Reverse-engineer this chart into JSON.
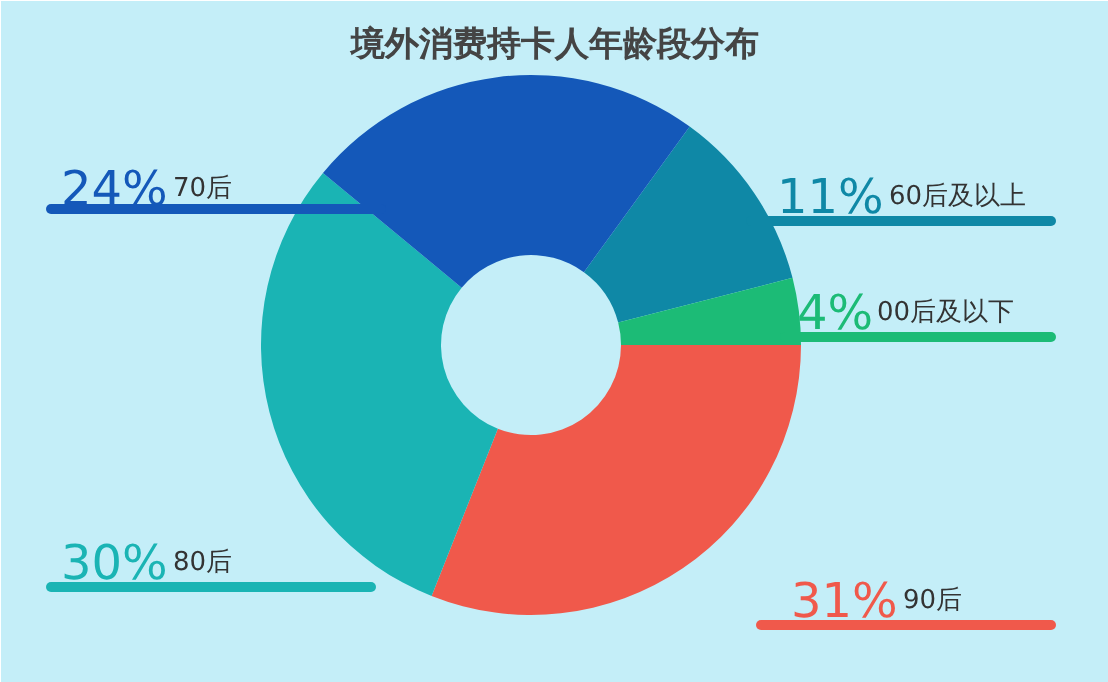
{
  "chart_data": {
    "type": "donut",
    "title": "境外消费持卡人年龄段分布",
    "categories": [
      "60后及以上",
      "00后及以下",
      "90后",
      "80后",
      "70后"
    ],
    "values": [
      11,
      4,
      31,
      30,
      24
    ],
    "value_labels": [
      "11%",
      "4%",
      "31%",
      "30%",
      "24%"
    ],
    "colors": [
      "#0f88a6",
      "#1cbb76",
      "#f0594b",
      "#1ab4b4",
      "#1458b9"
    ]
  }
}
